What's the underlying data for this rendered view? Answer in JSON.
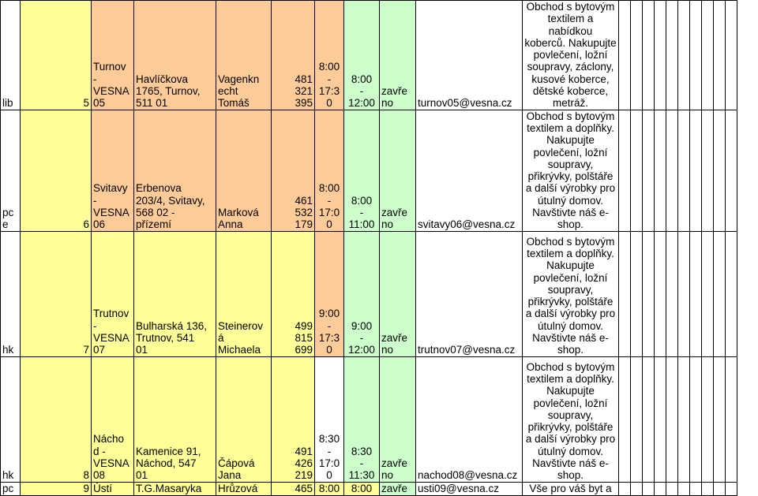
{
  "rows": [
    {
      "region": "lib",
      "number": "5",
      "name": "Turnov\n-\nVESNA\n05",
      "address": "Havlíčkova\n1765, Turnov,\n511 01",
      "manager": "Vagenkn\necht\nTomáš",
      "phone": "481\n321\n395",
      "hours_weekday": "8:00\n-\n17:3\n0",
      "hours_sat": "8:00\n-\n12:00",
      "sunday": "zavře\nno",
      "email": "turnov05@vesna.cz",
      "description": "Obchod s bytovým\ntextilem a nabídkou\nkoberců. Nakupujte\npovlečení, ložní\nsoupravy, záclony,\nkusové koberce,\ndětské koberce,\nmetráž."
    },
    {
      "region": "pc\ne",
      "number": "6",
      "name": "Svitavy\n-\nVESNA\n06",
      "address": "Erbenova\n203/4, Svitavy,\n568 02 -\npřízemí",
      "manager": "Marková\nAnna",
      "phone": "461\n532\n179",
      "hours_weekday": "8:00\n-\n17:0\n0",
      "hours_sat": "8:00\n-\n11:00",
      "sunday": "zavře\nno",
      "email": "svitavy06@vesna.cz",
      "description": "Obchod s bytovým\ntextilem a doplňky.\nNakupujte\npovlečení, ložní\nsoupravy,\npřikrývky, polštáře\na další výrobky pro\nútulný domov.\nNavštivte náš e-\nshop."
    },
    {
      "region": "hk",
      "number": "7",
      "name": "Trutnov\n-\nVESNA\n07",
      "address": "Bulharská 136,\nTrutnov, 541\n01",
      "manager": "Steinerov\ná\nMichaela",
      "phone": "499\n815\n699",
      "hours_weekday": "9:00\n-\n17:3\n0",
      "hours_sat": "9:00\n-\n12:00",
      "sunday": "zavře\nno",
      "email": "trutnov07@vesna.cz",
      "description": "Obchod s bytovým\ntextilem a doplňky.\nNakupujte\npovlečení, ložní\nsoupravy,\npřikrývky, polštáře\na další výrobky pro\nútulný domov.\nNavštivte náš e-\nshop."
    },
    {
      "region": "hk",
      "number": "8",
      "name": "Nácho\nd -\nVESNA\n08",
      "address": "Kamenice 91,\nNáchod, 547\n01",
      "manager": "Čápová\nJana",
      "phone": "491\n426\n219",
      "hours_weekday": "8:30\n-\n17:0\n0",
      "hours_sat": "8:30\n-\n11:30",
      "sunday": "zavře\nno",
      "email": "nachod08@vesna.cz",
      "description": "Obchod s bytovým\ntextilem a doplňky.\nNakupujte\npovlečení, ložní\nsoupravy,\npřikrývky, polštáře\na další výrobky pro\nútulný domov.\nNavštivte náš e-\nshop."
    },
    {
      "region": "pc",
      "number": "9",
      "name": "Ústí",
      "address": "T.G.Masaryka",
      "manager": "Hrůzová",
      "phone": "465",
      "hours_weekday": "8:00",
      "hours_sat": "8:00",
      "sunday": "zavře",
      "email": "usti09@vesna.cz",
      "description": "Vše pro váš byt a"
    }
  ]
}
